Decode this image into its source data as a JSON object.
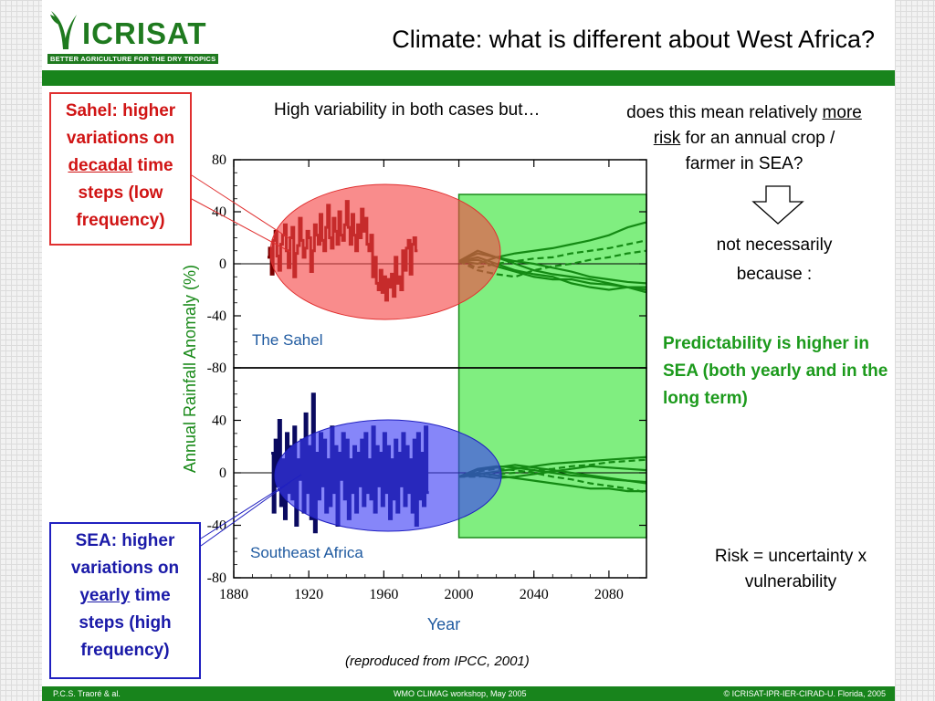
{
  "logo": {
    "name": "ICRISAT",
    "tagline": "BETTER AGRICULTURE FOR THE DRY TROPICS"
  },
  "slide": {
    "title": "Climate: what is different about West Africa?"
  },
  "callouts": {
    "sahel": {
      "l1": "Sahel: higher",
      "l2": "variations on",
      "l3": "decadal",
      "l3b": " time",
      "l4": "steps (low",
      "l5": "frequency)"
    },
    "sea": {
      "l1": "SEA: higher",
      "l2": "variations on",
      "l3": "yearly",
      "l3b": " time",
      "l4": "steps (high",
      "l5": "frequency)"
    }
  },
  "text": {
    "high_variability": "High variability in both cases but…",
    "q1": "does this mean relatively ",
    "q_more": "more",
    "q_risk": "risk",
    "q2": " for an annual crop  /",
    "q3": "farmer in SEA?",
    "not_necessarily_1": "not necessarily",
    "not_necessarily_2": "because :",
    "predictability": "Predictability is higher in SEA (both yearly and in the long term)",
    "risk_1": "Risk = uncertainty x",
    "risk_2": "vulnerability",
    "source": "(reproduced from IPCC, 2001)"
  },
  "footer": {
    "left": "P.C.S. Traoré & al.",
    "center": "WMO CLIMAG workshop, May 2005",
    "right": "© ICRISAT-IPR-IER-CIRAD-U. Florida, 2005"
  },
  "colors": {
    "brand_green": "#18841c",
    "sahel_red": "#e03030",
    "sea_blue": "#2020c0",
    "prediction_green": "#1c9a1c"
  },
  "chart_data": {
    "type": "line",
    "xlabel": "Year",
    "ylabel": "Annual Rainfall Anomaly (%)",
    "xlim": [
      1880,
      2100
    ],
    "x_ticks": [
      1880,
      1920,
      1960,
      2000,
      2040,
      2080
    ],
    "ylim": [
      -80,
      80
    ],
    "y_ticks": [
      80,
      40,
      0,
      -40,
      -80
    ],
    "panels": [
      {
        "name": "The Sahel",
        "y_ticks": [
          80,
          40,
          0,
          -40,
          -80
        ],
        "observed": {
          "start_year": 1898,
          "values": [
            5,
            12,
            -8,
            18,
            25,
            6,
            -5,
            15,
            22,
            30,
            10,
            -3,
            20,
            28,
            -10,
            8,
            14,
            35,
            18,
            5,
            12,
            25,
            20,
            -6,
            10,
            30,
            22,
            15,
            38,
            18,
            10,
            28,
            45,
            20,
            12,
            35,
            25,
            15,
            40,
            22,
            18,
            30,
            48,
            28,
            15,
            38,
            22,
            10,
            30,
            20,
            42,
            25,
            35,
            15,
            10,
            22,
            -10,
            5,
            -15,
            -20,
            -5,
            -22,
            -10,
            -28,
            -12,
            -18,
            -8,
            -25,
            5,
            -15,
            -10,
            -20,
            10,
            -5,
            12,
            18,
            -8,
            15,
            20,
            10
          ]
        },
        "scenarios": [
          [
            5,
            0,
            -5,
            -8,
            -10,
            -15,
            -18,
            -20,
            -18,
            -22
          ],
          [
            8,
            5,
            2,
            0,
            -3,
            -6,
            -10,
            -12,
            -14,
            -15
          ],
          [
            -5,
            -8,
            -10,
            -5,
            -2,
            0,
            3,
            5,
            8,
            10
          ],
          [
            0,
            5,
            8,
            10,
            12,
            15,
            18,
            22,
            28,
            32
          ],
          [
            3,
            -2,
            -6,
            -10,
            -12,
            -12,
            -15,
            -16,
            -18,
            -20
          ],
          [
            -3,
            0,
            2,
            4,
            5,
            8,
            10,
            12,
            15,
            18
          ],
          [
            10,
            5,
            0,
            -5,
            -8,
            -10,
            -12,
            -15,
            -18,
            -18
          ]
        ]
      },
      {
        "name": "Southeast Africa",
        "y_ticks": [
          40,
          0,
          -40,
          -80
        ],
        "observed": {
          "start_year": 1900,
          "values": [
            15,
            -30,
            25,
            -10,
            40,
            -25,
            10,
            -35,
            30,
            -15,
            20,
            -20,
            35,
            -40,
            10,
            -5,
            25,
            -30,
            45,
            -15,
            20,
            -35,
            60,
            -45,
            15,
            -20,
            30,
            -10,
            25,
            -30,
            10,
            -25,
            35,
            -15,
            20,
            -40,
            15,
            -5,
            30,
            -20,
            25,
            -35,
            10,
            -15,
            20,
            -30,
            15,
            -10,
            25,
            -25,
            30,
            -15,
            10,
            -20,
            35,
            -30,
            20,
            -10,
            15,
            -25,
            30,
            -15,
            20,
            -35,
            10,
            -20,
            25,
            -30,
            15,
            -10,
            30,
            -25,
            20,
            -15,
            10,
            -30,
            25,
            -40,
            30,
            -20,
            15,
            -25,
            35,
            -15
          ]
        },
        "scenarios": [
          [
            0,
            -2,
            -4,
            -6,
            -8,
            -10,
            -12,
            -12,
            -14,
            -14
          ],
          [
            3,
            5,
            4,
            2,
            0,
            -2,
            -3,
            -5,
            -6,
            -7
          ],
          [
            -3,
            -1,
            0,
            2,
            3,
            5,
            6,
            8,
            9,
            10
          ],
          [
            2,
            4,
            6,
            4,
            2,
            0,
            -2,
            -4,
            -6,
            -8
          ],
          [
            -2,
            -4,
            -3,
            -1,
            1,
            3,
            5,
            4,
            3,
            2
          ],
          [
            1,
            3,
            2,
            0,
            -3,
            -5,
            -8,
            -10,
            -12,
            -15
          ],
          [
            -1,
            1,
            3,
            5,
            7,
            8,
            9,
            10,
            11,
            12
          ]
        ]
      }
    ],
    "annotations": [
      "The Sahel",
      "Southeast Africa"
    ]
  }
}
